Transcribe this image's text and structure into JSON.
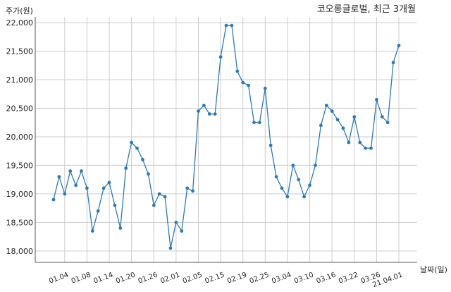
{
  "chart_data": {
    "type": "line",
    "title": "코오롱글로벌, 최근 3개월",
    "ylabel": "주가(원)",
    "xlabel": "날짜(일)",
    "ylim": [
      17800,
      22100
    ],
    "yticks": [
      18000,
      18500,
      19000,
      19500,
      20000,
      20500,
      21000,
      21500,
      22000
    ],
    "ytick_labels": [
      "18,000",
      "18,500",
      "19,000",
      "19,500",
      "20,000",
      "20,500",
      "21,000",
      "21,500",
      "22,000"
    ],
    "xtick_labels": [
      "01.04",
      "01.08",
      "01.14",
      "01.20",
      "01.26",
      "02.01",
      "02.05",
      "02.15",
      "02.19",
      "02.25",
      "03.04",
      "03.10",
      "03.16",
      "03.22",
      "03.26",
      "21.04.01"
    ],
    "xtick_index": [
      2,
      6,
      10,
      14,
      18,
      22,
      26,
      30,
      34,
      38,
      42,
      46,
      50,
      54,
      58,
      62
    ],
    "grid": true,
    "color": "#2e7ab6",
    "series": [
      {
        "values": [
          18900,
          19300,
          19000,
          19400,
          19150,
          19400,
          19100,
          18350,
          18700,
          19100,
          19200,
          18800,
          18400,
          19450,
          19900,
          19800,
          19600,
          19350,
          18800,
          19000,
          18950,
          18050,
          18500,
          18350,
          19100,
          19050,
          20450,
          20550,
          20400,
          20400,
          21400,
          21950,
          21950,
          21150,
          20950,
          20900,
          20250,
          20250,
          20850,
          19850,
          19300,
          19100,
          18950,
          19500,
          19250,
          18950,
          19150,
          19500,
          20200,
          20550,
          20450,
          20300,
          20150,
          19900,
          20350,
          19900,
          19800,
          19800,
          20650,
          20350,
          20250,
          21300,
          21600
        ]
      }
    ]
  }
}
